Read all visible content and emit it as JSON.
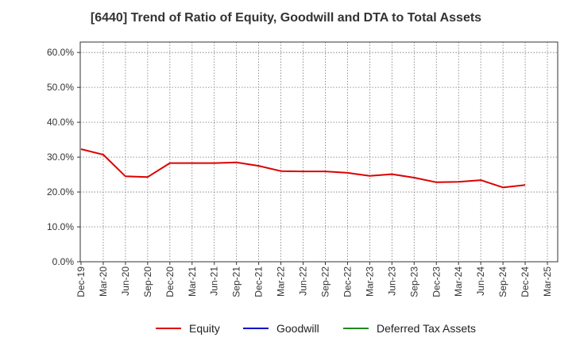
{
  "chart_data": {
    "type": "line",
    "title": "[6440]  Trend of Ratio of Equity, Goodwill and DTA to Total Assets",
    "xlabel": "",
    "ylabel": "",
    "ylim": [
      0,
      63
    ],
    "y_ticks": [
      "0.0%",
      "10.0%",
      "20.0%",
      "30.0%",
      "40.0%",
      "50.0%",
      "60.0%"
    ],
    "y_tick_values": [
      0,
      10,
      20,
      30,
      40,
      50,
      60
    ],
    "x_tick_labels": [
      "Dec-19",
      "Mar-20",
      "Jun-20",
      "Sep-20",
      "Dec-20",
      "Mar-21",
      "Jun-21",
      "Sep-21",
      "Dec-21",
      "Mar-22",
      "Jun-22",
      "Sep-22",
      "Dec-22",
      "Mar-23",
      "Jun-23",
      "Sep-23",
      "Dec-23",
      "Mar-24",
      "Jun-24",
      "Sep-24",
      "Dec-24",
      "Mar-25"
    ],
    "x_positions": 22,
    "grid": true,
    "legend_position": "bottom",
    "series": [
      {
        "name": "Equity",
        "color": "#dd0000",
        "values": [
          32.3,
          30.7,
          24.5,
          24.3,
          28.3,
          28.3,
          28.3,
          28.5,
          27.5,
          26.0,
          25.9,
          25.9,
          25.5,
          24.6,
          25.1,
          24.1,
          22.8,
          22.9,
          23.4,
          21.3,
          22.0
        ]
      },
      {
        "name": "Goodwill",
        "color": "#0000cc",
        "values": []
      },
      {
        "name": "Deferred Tax Assets",
        "color": "#228822",
        "values": []
      }
    ]
  }
}
